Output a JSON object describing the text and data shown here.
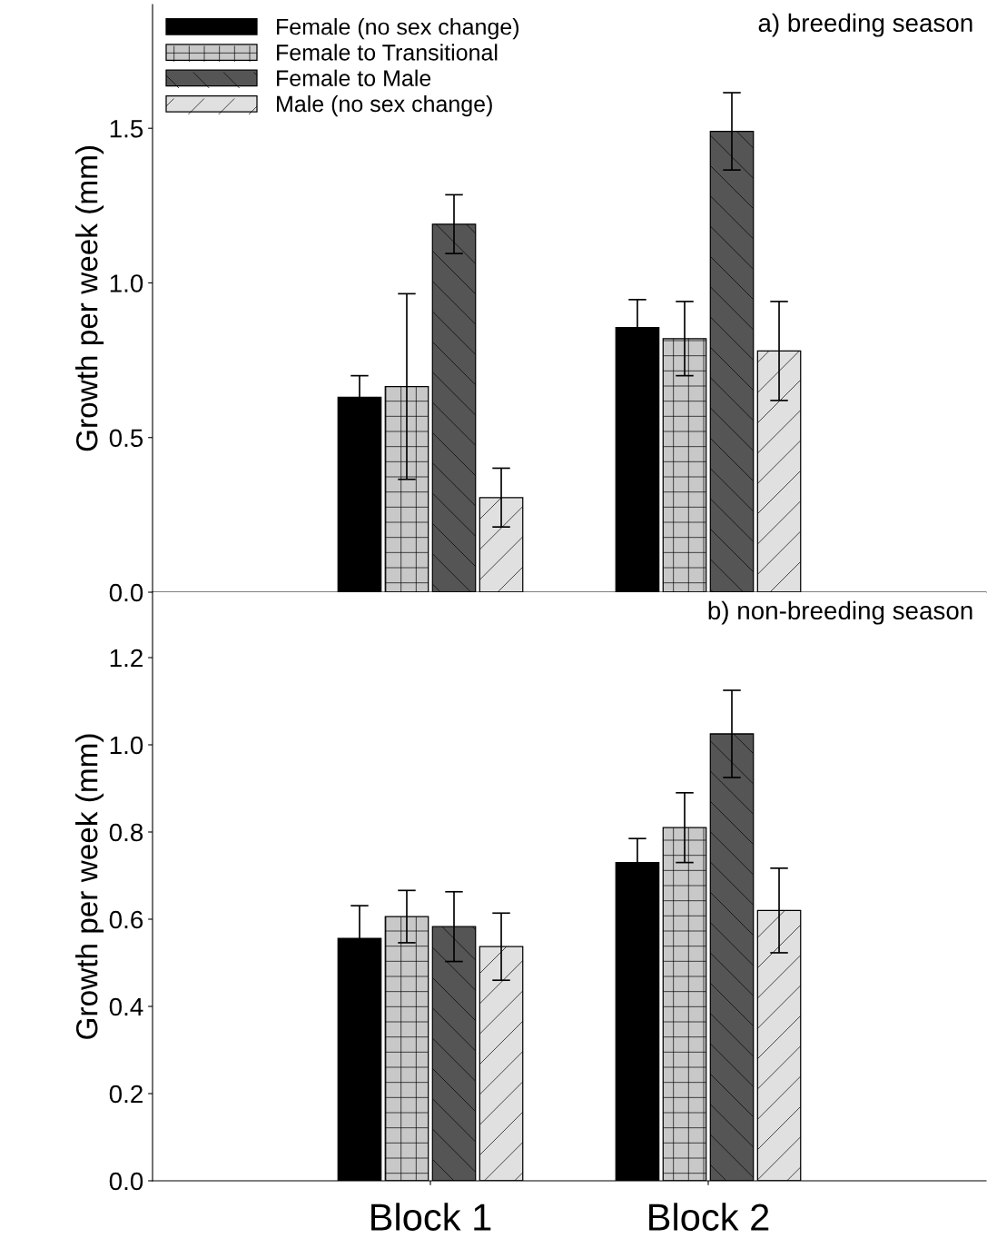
{
  "chart_data": [
    {
      "type": "bar",
      "categories": [
        null,
        null
      ],
      "ylabel": "Growth per week (mm)",
      "annotations": [
        "a) breeding season"
      ],
      "ylim": [
        0,
        1.9
      ],
      "yticks": [
        {
          "value": 0,
          "label": "0.0"
        },
        {
          "value": 0.5,
          "label": "0.5"
        },
        {
          "value": 1,
          "label": "1.0"
        },
        {
          "value": 1.5,
          "label": "1.5"
        }
      ],
      "legend": "top left",
      "grid": false,
      "series": [
        {
          "name": "Female (no sex change)",
          "color": "#000000",
          "values": [
            0.63,
            0.856
          ],
          "errors": [
            0.07,
            0.09
          ]
        },
        {
          "name": "Female to Transitional",
          "color": "#c8c8c8",
          "values": [
            0.665,
            0.82
          ],
          "errors": [
            0.3,
            0.12
          ]
        },
        {
          "name": "Female to Male",
          "color": "#555555",
          "values": [
            1.19,
            1.49
          ],
          "errors": [
            0.095,
            0.125
          ]
        },
        {
          "name": "Male (no sex change)",
          "color": "#e0e0e0",
          "values": [
            0.306,
            0.78
          ],
          "errors": [
            0.095,
            0.16
          ]
        }
      ]
    },
    {
      "type": "bar",
      "categories": [
        "Block 1",
        "Block 2"
      ],
      "ylabel": "Growth per week (mm)",
      "annotations": [
        "b) non-breeding season"
      ],
      "ylim": [
        0,
        1.35
      ],
      "yticks": [
        {
          "value": 0,
          "label": "0.0"
        },
        {
          "value": 0.2,
          "label": "0.2"
        },
        {
          "value": 0.4,
          "label": "0.4"
        },
        {
          "value": 0.6,
          "label": "0.6"
        },
        {
          "value": 0.8,
          "label": "0.8"
        },
        {
          "value": 1,
          "label": "1.0"
        },
        {
          "value": 1.2,
          "label": "1.2"
        }
      ],
      "grid": false,
      "series": [
        {
          "color": "#000000",
          "values": [
            0.556,
            0.73
          ],
          "errors": [
            0.075,
            0.055
          ]
        },
        {
          "color": "#c8c8c8",
          "values": [
            0.606,
            0.81
          ],
          "errors": [
            0.06,
            0.08
          ]
        },
        {
          "color": "#555555",
          "values": [
            0.583,
            1.025
          ],
          "errors": [
            0.08,
            0.1
          ]
        },
        {
          "color": "#e0e0e0",
          "values": [
            0.537,
            0.62
          ],
          "errors": [
            0.077,
            0.097
          ]
        }
      ]
    }
  ]
}
